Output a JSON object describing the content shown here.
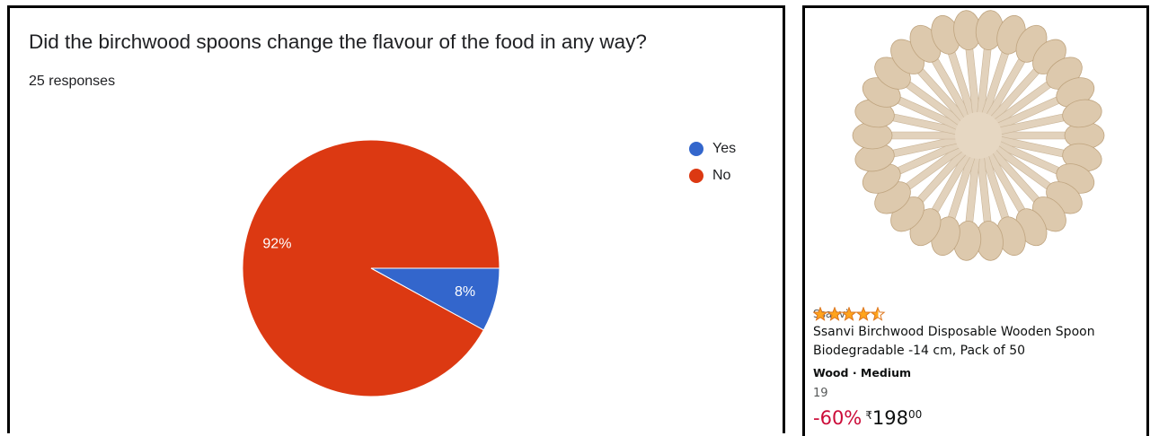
{
  "chart_data": {
    "type": "pie",
    "title": "Did the birchwood spoons change the flavour of the food in any way?",
    "subtitle": "25 responses",
    "categories": [
      "Yes",
      "No"
    ],
    "values": [
      8,
      92
    ],
    "value_labels": [
      "8%",
      "92%"
    ],
    "colors": [
      "#3366cc",
      "#dc3912"
    ],
    "legend": "right"
  },
  "product": {
    "brand": "Ssanvi",
    "title": "Ssanvi Birchwood Disposable Wooden Spoon Biodegradable -14 cm, Pack of 50",
    "attributes": "Wood · Medium",
    "rating": 4.5,
    "rating_count": "19",
    "discount": "-60%",
    "currency": "₹",
    "price_whole": "198",
    "price_fraction": "00"
  }
}
